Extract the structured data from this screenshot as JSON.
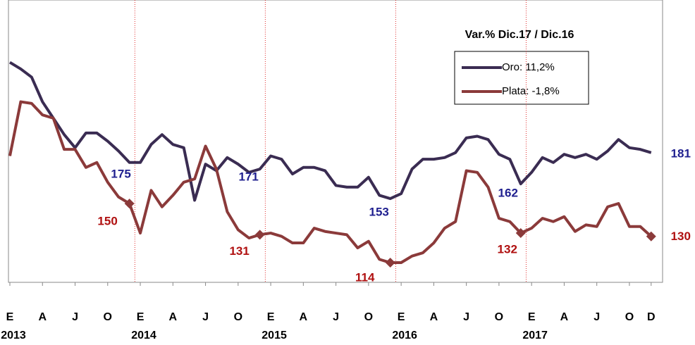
{
  "chart_data": {
    "type": "line",
    "legend_title": "Var.% Dic.17 / Dic.16",
    "categories": [
      "E",
      null,
      null,
      "A",
      null,
      null,
      "J",
      null,
      null,
      "O",
      null,
      null,
      "E",
      null,
      null,
      "A",
      null,
      null,
      "J",
      null,
      null,
      "O",
      null,
      null,
      "E",
      null,
      null,
      "A",
      null,
      null,
      "J",
      null,
      null,
      "O",
      null,
      null,
      "E",
      null,
      null,
      "A",
      null,
      null,
      "J",
      null,
      null,
      "O",
      null,
      null,
      "E",
      null,
      null,
      "A",
      null,
      null,
      "J",
      null,
      null,
      "O",
      null,
      "D"
    ],
    "years": [
      "2013",
      "2014",
      "2015",
      "2016",
      "2017"
    ],
    "ylim": [
      102,
      274
    ],
    "series": [
      {
        "name": "Oro: 11,2%",
        "color": "#3a2c52",
        "values": [
          236,
          232,
          227,
          212,
          202,
          192,
          184,
          193,
          193,
          188,
          182,
          175,
          175,
          186,
          192,
          186,
          184,
          152,
          174,
          170,
          178,
          174,
          169,
          171,
          179,
          177,
          168,
          172,
          172,
          170,
          161,
          160,
          160,
          166,
          155,
          153,
          156,
          171,
          177,
          177,
          178,
          181,
          190,
          191,
          189,
          180,
          177,
          162,
          169,
          178,
          175,
          180,
          178,
          180,
          177,
          182,
          189,
          184,
          183,
          181
        ]
      },
      {
        "name": "Plata: -1,8%",
        "color": "#8b3a3a",
        "values": [
          179,
          212,
          211,
          204,
          202,
          183,
          183,
          172,
          175,
          163,
          154,
          150,
          132,
          158,
          148,
          155,
          163,
          165,
          185,
          171,
          145,
          134,
          129,
          131,
          132,
          130,
          126,
          126,
          135,
          133,
          132,
          131,
          123,
          127,
          116,
          114,
          114,
          118,
          120,
          126,
          135,
          139,
          170,
          169,
          160,
          141,
          139,
          132,
          135,
          141,
          139,
          142,
          133,
          137,
          136,
          148,
          150,
          136,
          136,
          130
        ]
      }
    ],
    "label_colors": [
      "#1f1f8f",
      "#b01010"
    ],
    "separator_color": "#e03030"
  }
}
